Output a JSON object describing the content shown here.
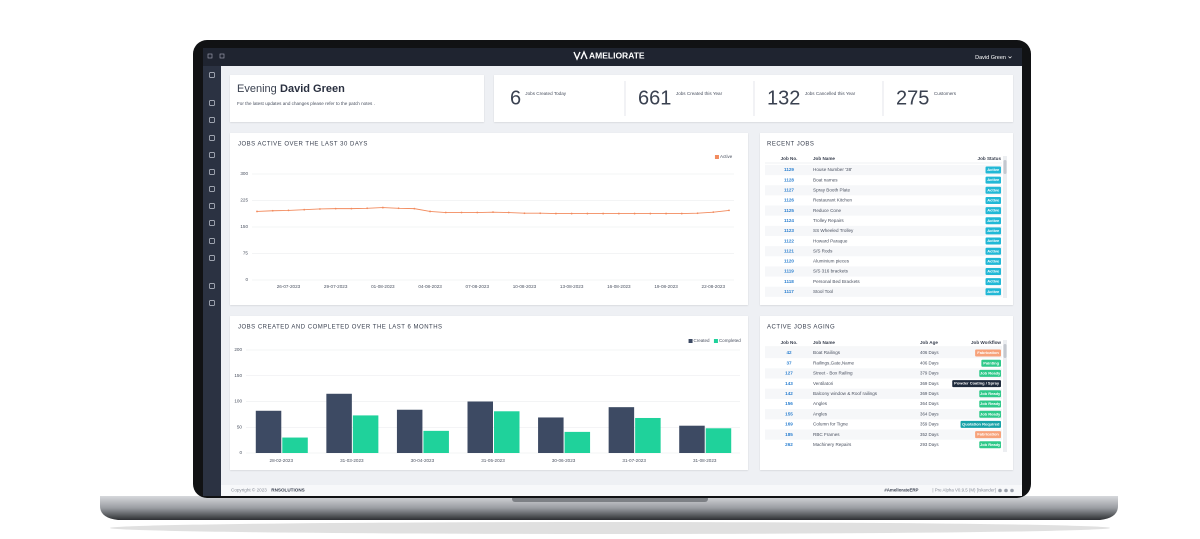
{
  "header": {
    "brand": "AMELIORATE",
    "user": "David Green"
  },
  "greeting": {
    "salutation": "Evening",
    "name": "David Green",
    "note": "For the latest updates and changes please refer to the patch notes ."
  },
  "stats": [
    {
      "value": 6,
      "label": "Jobs Created Today"
    },
    {
      "value": 661,
      "label": "Jobs Created this Year"
    },
    {
      "value": 132,
      "label": "Jobs Cancelled this Year"
    },
    {
      "value": 275,
      "label": "Customers"
    }
  ],
  "chart_data": [
    {
      "type": "line",
      "title": "JOBS ACTIVE OVER THE LAST 30 DAYS",
      "categories": [
        null,
        null,
        "26-07-2023",
        null,
        null,
        "29-07-2023",
        null,
        null,
        "01-08-2023",
        null,
        null,
        "04-08-2023",
        null,
        null,
        "07-08-2023",
        null,
        null,
        "10-08-2023",
        null,
        null,
        "13-08-2023",
        null,
        null,
        "16-08-2023",
        null,
        null,
        "19-08-2023",
        null,
        null,
        "22-08-2023",
        null
      ],
      "series": [
        {
          "name": "Active",
          "color": "#f28b5e",
          "values": [
            194,
            196,
            197,
            199,
            201,
            202,
            202,
            203,
            205,
            203,
            202,
            194,
            191,
            191,
            191,
            192,
            191,
            189,
            189,
            188,
            188,
            188,
            188,
            188,
            188,
            188,
            188,
            188,
            189,
            192,
            197
          ]
        }
      ],
      "ylim": [
        0,
        300
      ],
      "yticks": [
        0,
        75,
        150,
        225,
        300
      ],
      "grid": true,
      "legend": "top-right"
    },
    {
      "type": "bar",
      "title": "JOBS CREATED AND COMPLETED OVER THE LAST 6 MONTHS",
      "categories": [
        "28-02-2023",
        "31-03-2023",
        "30-04-2023",
        "31-05-2023",
        "30-06-2023",
        "31-07-2023",
        "31-08-2023"
      ],
      "series": [
        {
          "name": "Created",
          "color": "#3d4a63",
          "values": [
            82,
            115,
            84,
            100,
            69,
            89,
            53
          ]
        },
        {
          "name": "Completed",
          "color": "#1fd29b",
          "values": [
            30,
            73,
            43,
            81,
            41,
            68,
            48
          ]
        }
      ],
      "ylim": [
        0,
        200
      ],
      "yticks": [
        0,
        50,
        100,
        150,
        200
      ],
      "grid": true,
      "legend": "top-right"
    }
  ],
  "recent_jobs": {
    "title": "RECENT JOBS",
    "columns": [
      "Job No.",
      "Job Name",
      "Job Status"
    ],
    "status_color": "#22b8d6",
    "rows": [
      {
        "no": "1129",
        "name": "House Number '38'",
        "status": "Active"
      },
      {
        "no": "1128",
        "name": "Boat names",
        "status": "Active"
      },
      {
        "no": "1127",
        "name": "Spray Booth Plate",
        "status": "Active"
      },
      {
        "no": "1126",
        "name": "Restaurant Kitchen",
        "status": "Active"
      },
      {
        "no": "1125",
        "name": "Reduce Cone",
        "status": "Active"
      },
      {
        "no": "1124",
        "name": "Trolley Repairs",
        "status": "Active"
      },
      {
        "no": "1123",
        "name": "SS Wheeled Trolley",
        "status": "Active"
      },
      {
        "no": "1122",
        "name": "Howard Paraque",
        "status": "Active"
      },
      {
        "no": "1121",
        "name": "S/S Rods",
        "status": "Active"
      },
      {
        "no": "1120",
        "name": "Aluminium pieces",
        "status": "Active"
      },
      {
        "no": "1119",
        "name": "S/S 316 brackets",
        "status": "Active"
      },
      {
        "no": "1118",
        "name": "Personal Bed Brackets",
        "status": "Active"
      },
      {
        "no": "1117",
        "name": "Stool Tool",
        "status": "Active"
      }
    ]
  },
  "active_jobs_aging": {
    "title": "ACTIVE JOBS AGING",
    "columns": [
      "Job No.",
      "Job Name",
      "Job Age",
      "Job Workflow"
    ],
    "rows": [
      {
        "no": "42",
        "name": "Boat Railings",
        "age": "406 Days",
        "workflow": "Fabrication",
        "color": "#f7a27a"
      },
      {
        "no": "37",
        "name": "Railings,Gate,Name",
        "age": "406 Days",
        "workflow": "Painting",
        "color": "#2fc98a"
      },
      {
        "no": "127",
        "name": "Street - Box Railing",
        "age": "379 Days",
        "workflow": "Job Ready",
        "color": "#2fc98a"
      },
      {
        "no": "143",
        "name": "Ventilatori",
        "age": "369 Days",
        "workflow": "Powder Coating / Spray",
        "color": "#1e2a3c"
      },
      {
        "no": "142",
        "name": "Balcony window & Roof railings",
        "age": "369 Days",
        "workflow": "Job Ready",
        "color": "#2fc98a"
      },
      {
        "no": "156",
        "name": "Angles",
        "age": "364 Days",
        "workflow": "Job Ready",
        "color": "#2fc98a"
      },
      {
        "no": "155",
        "name": "Angles",
        "age": "364 Days",
        "workflow": "Job Ready",
        "color": "#2fc98a"
      },
      {
        "no": "169",
        "name": "Column for Tigne",
        "age": "359 Days",
        "workflow": "Quotation Required",
        "color": "#17a2a8"
      },
      {
        "no": "185",
        "name": "RBC Frames",
        "age": "352 Days",
        "workflow": "Fabrication",
        "color": "#f7a27a"
      },
      {
        "no": "262",
        "name": "Machinery Repairs",
        "age": "293 Days",
        "workflow": "Job Ready",
        "color": "#2fc98a"
      }
    ]
  },
  "footer": {
    "copyright": "Copyright © 2023",
    "company": "RNSOLUTIONS",
    "tag": "#AmeliorateERP",
    "version": "| Pre Alpha V0.9.5 (M) [Iskander]"
  }
}
